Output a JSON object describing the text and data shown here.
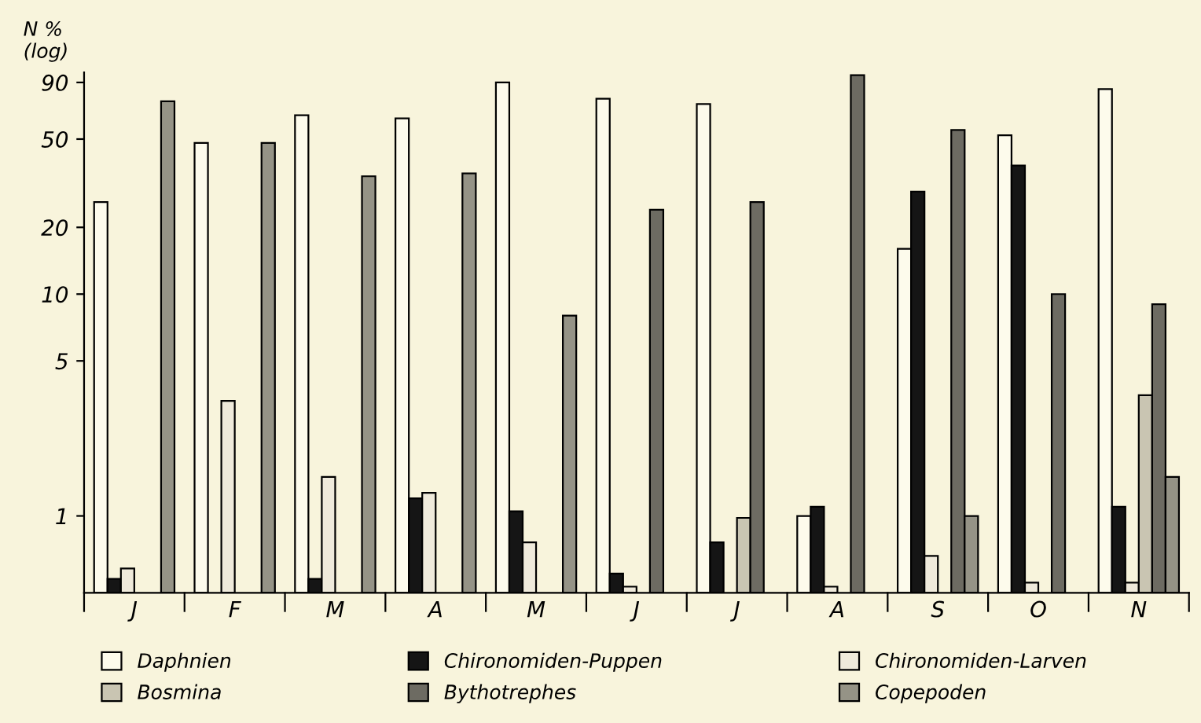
{
  "chart_data": {
    "type": "bar",
    "ylabel": "N %\n(log)",
    "log": true,
    "ylim": [
      0.45,
      100
    ],
    "yticks": [
      1,
      5,
      10,
      20,
      50,
      90
    ],
    "grid": false,
    "legend": "bottom",
    "categories": [
      "J",
      "F",
      "M",
      "A",
      "M",
      "J",
      "J",
      "A",
      "S",
      "O",
      "N"
    ],
    "series": [
      {
        "name": "Daphnien",
        "color": "#fdfbec",
        "values": [
          26,
          48,
          64,
          62,
          90,
          76,
          72,
          1.0,
          16,
          52,
          84
        ]
      },
      {
        "name": "Chironomiden-Puppen",
        "color": "#151515",
        "values": [
          0.52,
          null,
          0.52,
          1.2,
          1.05,
          0.55,
          0.76,
          1.1,
          29,
          38,
          1.1
        ]
      },
      {
        "name": "Chironomiden-Larven",
        "color": "#efeadb",
        "values": [
          0.58,
          3.3,
          1.5,
          1.27,
          0.76,
          0.48,
          null,
          0.48,
          0.66,
          0.5,
          0.5
        ]
      },
      {
        "name": "Bosmina",
        "color": "#c9c5b2",
        "values": [
          null,
          null,
          null,
          null,
          null,
          null,
          0.98,
          null,
          null,
          null,
          3.5
        ]
      },
      {
        "name": "Bythotrephes",
        "color": "#6d6b62",
        "values": [
          null,
          null,
          null,
          null,
          null,
          24,
          26,
          97,
          55,
          10,
          9
        ]
      },
      {
        "name": "Copepoden",
        "color": "#959386",
        "values": [
          74,
          48,
          34,
          35,
          8.0,
          null,
          null,
          null,
          1.0,
          null,
          1.5
        ]
      }
    ]
  }
}
